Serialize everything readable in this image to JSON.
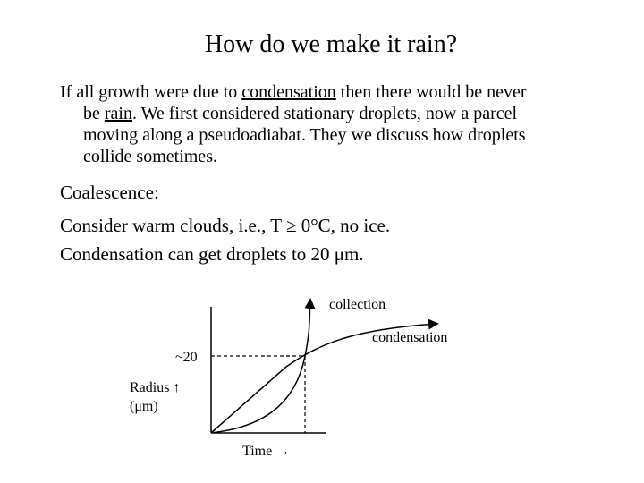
{
  "title": "How do we make it rain?",
  "paragraph1": {
    "line1_pre": "If all growth were due to ",
    "line1_link": "condensation",
    "line1_post": " then there would be never",
    "line2_pre": "be ",
    "line2_link": "rain",
    "line2_post": ".  We first considered stationary droplets, now a parcel",
    "line3": "moving along a pseudoadiabat.  They we discuss how droplets",
    "line4": "collide sometimes."
  },
  "paragraph2": "Coalescence:",
  "paragraph3": "Consider warm clouds, i.e., T ≥ 0°C, no ice.",
  "paragraph4": "Condensation can get droplets to 20 μm.",
  "graph": {
    "label_collection": "collection",
    "label_condensation": "condensation",
    "label_y_value": "~20",
    "label_y_axis_line1": "Radius ↑",
    "label_y_axis_line2": "(μm)",
    "label_x_axis": "Time →"
  }
}
